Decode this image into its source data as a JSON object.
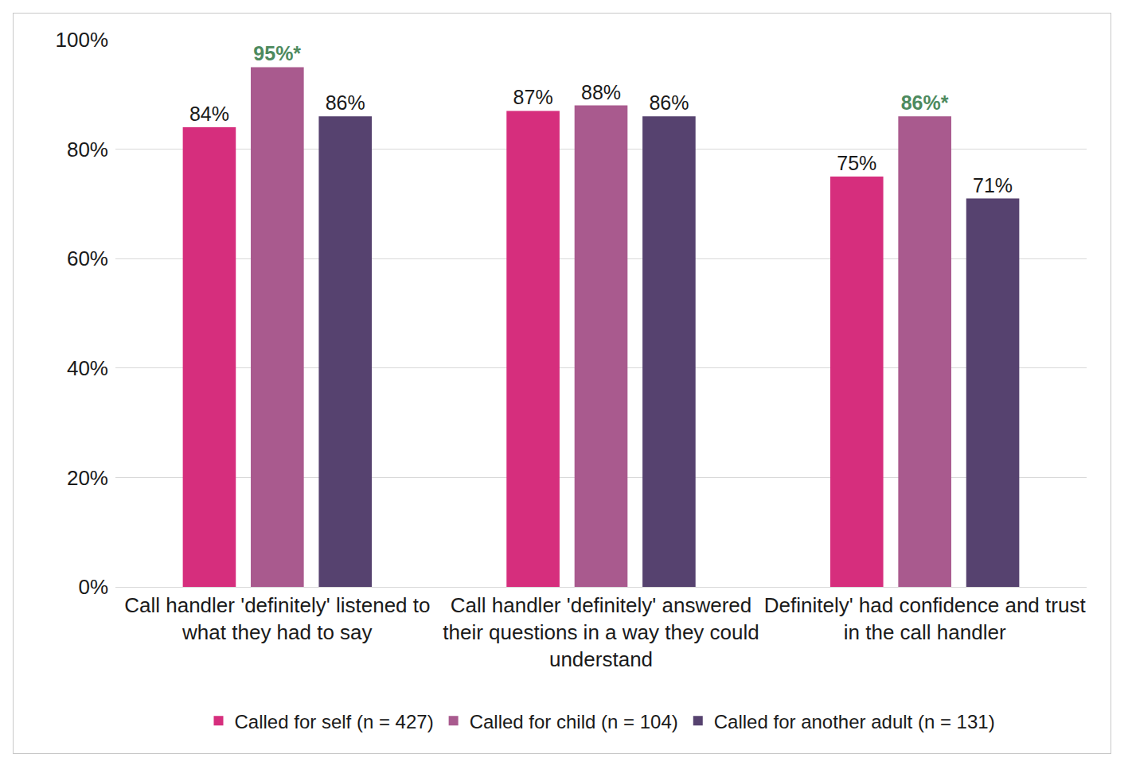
{
  "chart_data": {
    "type": "bar",
    "categories": [
      "Call handler 'definitely' listened to what they had to say",
      "Call handler 'definitely' answered their questions in a way they could understand",
      "Definitely' had confidence and trust in the call handler"
    ],
    "series": [
      {
        "name": "Called for self (n = 427)",
        "color": "#d62e7d",
        "values": [
          84,
          87,
          75
        ],
        "value_labels": [
          "84%",
          "87%",
          "75%"
        ]
      },
      {
        "name": "Called for child (n = 104)",
        "color": "#a95a8e",
        "values": [
          95,
          88,
          86
        ],
        "value_labels": [
          "95%*",
          "88%",
          "86%*"
        ]
      },
      {
        "name": "Called for another adult (n = 131)",
        "color": "#56426f",
        "values": [
          86,
          86,
          71
        ],
        "value_labels": [
          "86%",
          "86%",
          "71%"
        ]
      }
    ],
    "ylim": [
      0,
      100
    ],
    "yticks": [
      {
        "value": 0,
        "label": "0%"
      },
      {
        "value": 20,
        "label": "20%"
      },
      {
        "value": 40,
        "label": "40%"
      },
      {
        "value": 60,
        "label": "60%"
      },
      {
        "value": 80,
        "label": "80%"
      },
      {
        "value": 100,
        "label": "100%"
      }
    ],
    "grid": true,
    "legend": "bottom",
    "data_labels": true
  }
}
